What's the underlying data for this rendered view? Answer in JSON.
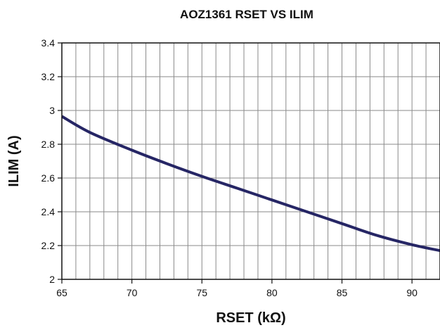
{
  "chart_data": {
    "type": "line",
    "title": "AOZ1361 RSET VS ILIM",
    "xlabel": "RSET (kΩ)",
    "ylabel": "ILIM (A)",
    "xlim": [
      65,
      92
    ],
    "ylim": [
      2,
      3.4
    ],
    "x_ticks": [
      65,
      70,
      75,
      80,
      85,
      90
    ],
    "x_tick_labels": [
      "65",
      "70",
      "75",
      "80",
      "85",
      "90"
    ],
    "y_ticks": [
      2,
      2.2,
      2.4,
      2.6,
      2.8,
      3,
      3.2,
      3.4
    ],
    "y_tick_labels": [
      "2",
      "2.2",
      "2.4",
      "2.6",
      "2.8",
      "3",
      "3.2",
      "3.4"
    ],
    "x_grid_step": 1,
    "y_grid_step": 0.2,
    "grid": true,
    "legend": "none",
    "series": [
      {
        "color": "#262665",
        "x": [
          65,
          67,
          70,
          72.5,
          75,
          77.5,
          80,
          82.5,
          85,
          87.5,
          90,
          92
        ],
        "y": [
          2.965,
          2.87,
          2.765,
          2.685,
          2.61,
          2.54,
          2.47,
          2.4,
          2.33,
          2.26,
          2.205,
          2.17
        ]
      }
    ]
  }
}
